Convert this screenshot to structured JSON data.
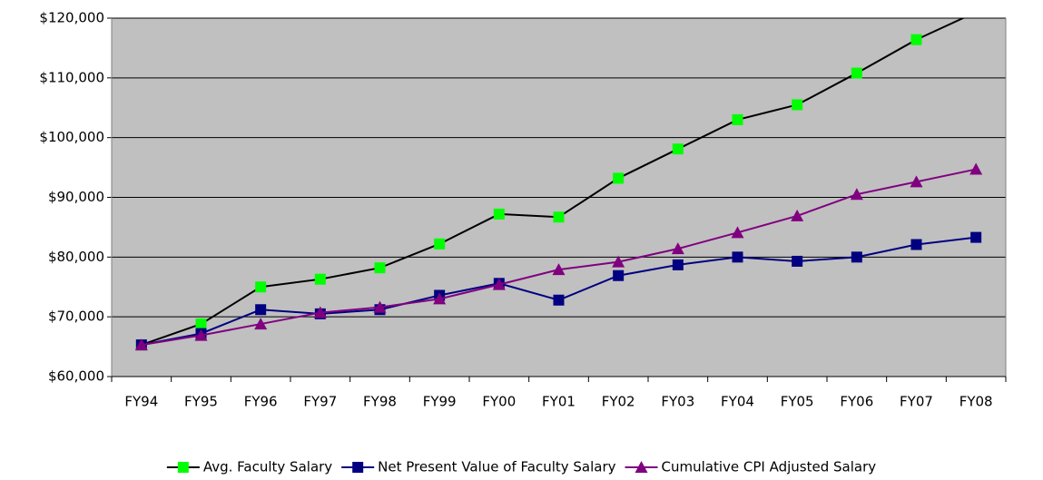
{
  "chart_data": {
    "type": "line",
    "categories": [
      "FY94",
      "FY95",
      "FY96",
      "FY97",
      "FY98",
      "FY99",
      "FY00",
      "FY01",
      "FY02",
      "FY03",
      "FY04",
      "FY05",
      "FY06",
      "FY07",
      "FY08"
    ],
    "series": [
      {
        "name": "Avg. Faculty Salary",
        "color": "#00ff00",
        "line_color": "#000000",
        "marker": "square",
        "values": [
          65300,
          68800,
          75000,
          76300,
          78200,
          82200,
          87200,
          86700,
          93200,
          98100,
          103000,
          105500,
          110800,
          116400,
          121000
        ]
      },
      {
        "name": "Net Present Value of Faculty Salary",
        "color": "#000080",
        "line_color": "#000080",
        "marker": "square",
        "values": [
          65300,
          67200,
          71200,
          70500,
          71200,
          73600,
          75600,
          72800,
          76900,
          78700,
          80000,
          79300,
          80000,
          82100,
          83300
        ]
      },
      {
        "name": "Cumulative CPI Adjusted Salary",
        "color": "#800080",
        "line_color": "#800080",
        "marker": "triangle",
        "values": [
          65300,
          66900,
          68800,
          70700,
          71600,
          73000,
          75400,
          77900,
          79200,
          81400,
          84100,
          86900,
          90500,
          92600,
          94700
        ]
      }
    ],
    "ylim": [
      60000,
      120000
    ],
    "yticks": [
      {
        "value": 60000,
        "label": "$60,000"
      },
      {
        "value": 70000,
        "label": "$70,000"
      },
      {
        "value": 80000,
        "label": "$80,000"
      },
      {
        "value": 90000,
        "label": "$90,000"
      },
      {
        "value": 100000,
        "label": "$100,000"
      },
      {
        "value": 110000,
        "label": "$110,000"
      },
      {
        "value": 120000,
        "label": "$120,000"
      }
    ],
    "grid": true,
    "plot_background": "#c0c0c0",
    "legend": "bottom"
  }
}
